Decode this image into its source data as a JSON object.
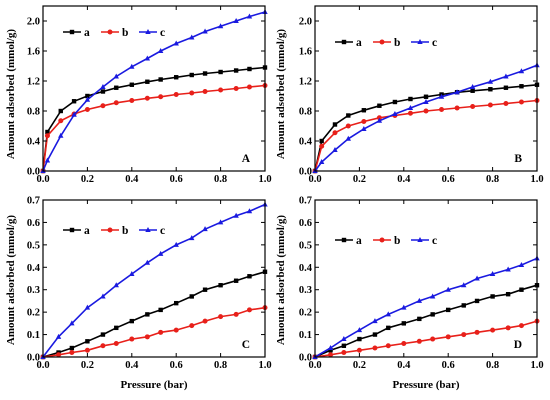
{
  "figure": {
    "xlabel": "Pressure (bar)",
    "ylabel": "Amount adsorbed (mmol/g)"
  },
  "chart_data": [
    {
      "type": "line",
      "panel_label": "A",
      "xlabel": "Pressure (bar)",
      "ylabel": "Amount adsorbed (mmol/g)",
      "xlim": [
        0,
        1.0
      ],
      "ylim": [
        0,
        2.2
      ],
      "xticks": [
        "0.0",
        "0.2",
        "0.4",
        "0.6",
        "0.8",
        "1.0"
      ],
      "yticks": [
        "0.0",
        "0.4",
        "0.8",
        "1.2",
        "1.6",
        "2.0"
      ],
      "grid": false,
      "legend": "top-left",
      "series": [
        {
          "name": "a",
          "color": "#000000",
          "marker": "square",
          "x": [
            0,
            0.02,
            0.08,
            0.14,
            0.2,
            0.27,
            0.33,
            0.4,
            0.47,
            0.53,
            0.6,
            0.67,
            0.73,
            0.8,
            0.87,
            0.93,
            1.0
          ],
          "y": [
            0,
            0.52,
            0.8,
            0.93,
            1.0,
            1.06,
            1.11,
            1.15,
            1.19,
            1.22,
            1.25,
            1.28,
            1.3,
            1.32,
            1.34,
            1.36,
            1.38
          ]
        },
        {
          "name": "b",
          "color": "#e8201a",
          "marker": "circle",
          "x": [
            0,
            0.02,
            0.08,
            0.14,
            0.2,
            0.27,
            0.33,
            0.4,
            0.47,
            0.53,
            0.6,
            0.67,
            0.73,
            0.8,
            0.87,
            0.93,
            1.0
          ],
          "y": [
            0,
            0.47,
            0.67,
            0.76,
            0.82,
            0.87,
            0.91,
            0.94,
            0.97,
            0.99,
            1.02,
            1.04,
            1.06,
            1.08,
            1.1,
            1.12,
            1.14
          ]
        },
        {
          "name": "c",
          "color": "#1a1ae0",
          "marker": "triangle",
          "x": [
            0,
            0.02,
            0.08,
            0.14,
            0.2,
            0.27,
            0.33,
            0.4,
            0.47,
            0.53,
            0.6,
            0.67,
            0.73,
            0.8,
            0.87,
            0.93,
            1.0
          ],
          "y": [
            0,
            0.14,
            0.47,
            0.75,
            0.95,
            1.12,
            1.26,
            1.39,
            1.5,
            1.6,
            1.7,
            1.78,
            1.86,
            1.93,
            2.0,
            2.06,
            2.12
          ]
        }
      ]
    },
    {
      "type": "line",
      "panel_label": "B",
      "xlabel": "Pressure (bar)",
      "ylabel": "Amount adsorbed (mmol/g)",
      "xlim": [
        0,
        1.0
      ],
      "ylim": [
        0,
        2.2
      ],
      "xticks": [
        "0.0",
        "0.2",
        "0.4",
        "0.6",
        "0.8",
        "1.0"
      ],
      "yticks": [
        "0.0",
        "0.4",
        "0.8",
        "1.2",
        "1.6",
        "2.0"
      ],
      "grid": false,
      "legend": "top-left",
      "series": [
        {
          "name": "a",
          "color": "#000000",
          "marker": "square",
          "x": [
            0,
            0.03,
            0.09,
            0.15,
            0.22,
            0.29,
            0.36,
            0.43,
            0.5,
            0.57,
            0.64,
            0.71,
            0.79,
            0.86,
            0.93,
            1.0
          ],
          "y": [
            0,
            0.4,
            0.62,
            0.74,
            0.81,
            0.87,
            0.92,
            0.96,
            0.99,
            1.02,
            1.05,
            1.07,
            1.09,
            1.11,
            1.13,
            1.15
          ]
        },
        {
          "name": "b",
          "color": "#e8201a",
          "marker": "circle",
          "x": [
            0,
            0.03,
            0.09,
            0.15,
            0.22,
            0.29,
            0.36,
            0.43,
            0.5,
            0.57,
            0.64,
            0.71,
            0.79,
            0.86,
            0.93,
            1.0
          ],
          "y": [
            0,
            0.33,
            0.51,
            0.6,
            0.66,
            0.71,
            0.74,
            0.77,
            0.8,
            0.82,
            0.84,
            0.86,
            0.88,
            0.9,
            0.92,
            0.94
          ]
        },
        {
          "name": "c",
          "color": "#1a1ae0",
          "marker": "triangle",
          "x": [
            0,
            0.03,
            0.09,
            0.15,
            0.22,
            0.29,
            0.36,
            0.43,
            0.5,
            0.57,
            0.64,
            0.71,
            0.79,
            0.86,
            0.93,
            1.0
          ],
          "y": [
            0,
            0.12,
            0.28,
            0.43,
            0.56,
            0.67,
            0.76,
            0.84,
            0.92,
            0.99,
            1.05,
            1.12,
            1.19,
            1.26,
            1.33,
            1.41
          ]
        }
      ]
    },
    {
      "type": "line",
      "panel_label": "C",
      "xlabel": "Pressure (bar)",
      "ylabel": "Amount adsorbed (mmol/g)",
      "xlim": [
        0,
        1.0
      ],
      "ylim": [
        0,
        0.7
      ],
      "xticks": [
        "0.0",
        "0.2",
        "0.4",
        "0.6",
        "0.8",
        "1.0"
      ],
      "yticks": [
        "0.0",
        "0.1",
        "0.2",
        "0.3",
        "0.4",
        "0.5",
        "0.6",
        "0.7"
      ],
      "grid": false,
      "legend": "top-left",
      "series": [
        {
          "name": "a",
          "color": "#000000",
          "marker": "square",
          "x": [
            0,
            0.07,
            0.13,
            0.2,
            0.27,
            0.33,
            0.4,
            0.47,
            0.53,
            0.6,
            0.67,
            0.73,
            0.8,
            0.87,
            0.93,
            1.0
          ],
          "y": [
            0,
            0.02,
            0.04,
            0.07,
            0.1,
            0.13,
            0.16,
            0.19,
            0.21,
            0.24,
            0.27,
            0.3,
            0.32,
            0.34,
            0.36,
            0.38
          ]
        },
        {
          "name": "b",
          "color": "#e8201a",
          "marker": "circle",
          "x": [
            0,
            0.07,
            0.13,
            0.2,
            0.27,
            0.33,
            0.4,
            0.47,
            0.53,
            0.6,
            0.67,
            0.73,
            0.8,
            0.87,
            0.93,
            1.0
          ],
          "y": [
            0,
            0.01,
            0.02,
            0.03,
            0.05,
            0.06,
            0.08,
            0.09,
            0.11,
            0.12,
            0.14,
            0.16,
            0.18,
            0.19,
            0.21,
            0.22
          ]
        },
        {
          "name": "c",
          "color": "#1a1ae0",
          "marker": "triangle",
          "x": [
            0,
            0.07,
            0.13,
            0.2,
            0.27,
            0.33,
            0.4,
            0.47,
            0.53,
            0.6,
            0.67,
            0.73,
            0.8,
            0.87,
            0.93,
            1.0
          ],
          "y": [
            0,
            0.09,
            0.15,
            0.22,
            0.27,
            0.32,
            0.37,
            0.42,
            0.46,
            0.5,
            0.53,
            0.57,
            0.6,
            0.63,
            0.65,
            0.68
          ]
        }
      ]
    },
    {
      "type": "line",
      "panel_label": "D",
      "xlabel": "Pressure (bar)",
      "ylabel": "Amount adsorbed (mmol/g)",
      "xlim": [
        0,
        1.0
      ],
      "ylim": [
        0,
        0.7
      ],
      "xticks": [
        "0.0",
        "0.2",
        "0.4",
        "0.6",
        "0.8",
        "1.0"
      ],
      "yticks": [
        "0.0",
        "0.1",
        "0.2",
        "0.3",
        "0.4",
        "0.5",
        "0.6",
        "0.7"
      ],
      "grid": false,
      "legend": "top-left",
      "series": [
        {
          "name": "a",
          "color": "#000000",
          "marker": "square",
          "x": [
            0,
            0.07,
            0.13,
            0.2,
            0.27,
            0.33,
            0.4,
            0.47,
            0.53,
            0.6,
            0.67,
            0.73,
            0.8,
            0.87,
            0.93,
            1.0
          ],
          "y": [
            0,
            0.03,
            0.05,
            0.08,
            0.1,
            0.13,
            0.15,
            0.17,
            0.19,
            0.21,
            0.23,
            0.25,
            0.27,
            0.28,
            0.3,
            0.32
          ]
        },
        {
          "name": "b",
          "color": "#e8201a",
          "marker": "circle",
          "x": [
            0,
            0.07,
            0.13,
            0.2,
            0.27,
            0.33,
            0.4,
            0.47,
            0.53,
            0.6,
            0.67,
            0.73,
            0.8,
            0.87,
            0.93,
            1.0
          ],
          "y": [
            0,
            0.01,
            0.02,
            0.03,
            0.04,
            0.05,
            0.06,
            0.07,
            0.08,
            0.09,
            0.1,
            0.11,
            0.12,
            0.13,
            0.14,
            0.16
          ]
        },
        {
          "name": "c",
          "color": "#1a1ae0",
          "marker": "triangle",
          "x": [
            0,
            0.07,
            0.13,
            0.2,
            0.27,
            0.33,
            0.4,
            0.47,
            0.53,
            0.6,
            0.67,
            0.73,
            0.8,
            0.87,
            0.93,
            1.0
          ],
          "y": [
            0,
            0.04,
            0.08,
            0.12,
            0.16,
            0.19,
            0.22,
            0.25,
            0.27,
            0.3,
            0.32,
            0.35,
            0.37,
            0.39,
            0.41,
            0.44
          ]
        }
      ]
    }
  ]
}
